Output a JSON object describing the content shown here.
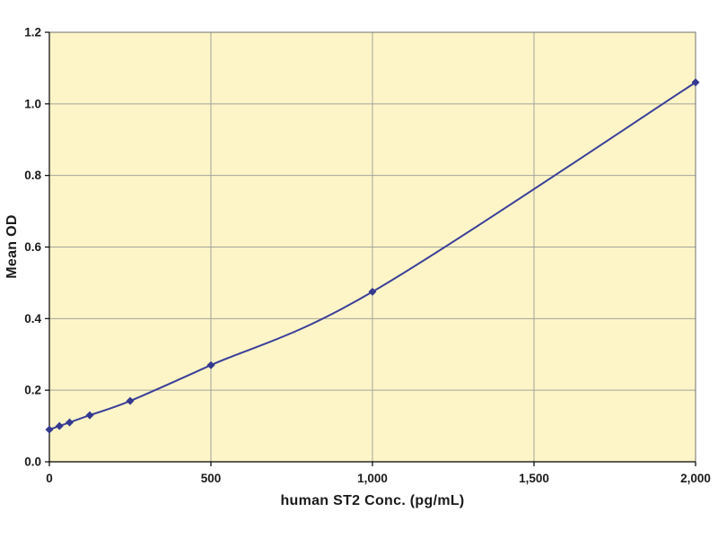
{
  "chart_data": {
    "type": "line",
    "title": "",
    "xlabel": "human ST2 Conc. (pg/mL)",
    "ylabel": "Mean OD",
    "x": [
      0,
      31.25,
      62.5,
      125,
      250,
      500,
      1000,
      2000
    ],
    "series": [
      {
        "name": "Mean OD",
        "values": [
          0.09,
          0.1,
          0.11,
          0.13,
          0.17,
          0.27,
          0.475,
          1.06
        ]
      }
    ],
    "xlim": [
      0,
      2000
    ],
    "ylim": [
      0,
      1.2
    ],
    "x_ticks": [
      0,
      500,
      1000,
      1500,
      2000
    ],
    "x_tick_labels": [
      "0",
      "500",
      "1,000",
      "1,500",
      "2,000"
    ],
    "y_ticks": [
      0,
      0.2,
      0.4,
      0.6,
      0.8,
      1.0,
      1.2
    ],
    "y_tick_labels": [
      "0.0",
      "0.2",
      "0.4",
      "0.6",
      "0.8",
      "1.0",
      "1.2"
    ],
    "grid": true,
    "legend": "none",
    "marker": "diamond",
    "colors": {
      "line": "#3b3f99",
      "marker": "#343a8f",
      "plot_bg": "#fdf5c8",
      "grid": "#a3a39a",
      "border": "#70706a",
      "axis": "#000000",
      "text": "#1a1a1a",
      "page_bg": "#ffffff"
    }
  }
}
